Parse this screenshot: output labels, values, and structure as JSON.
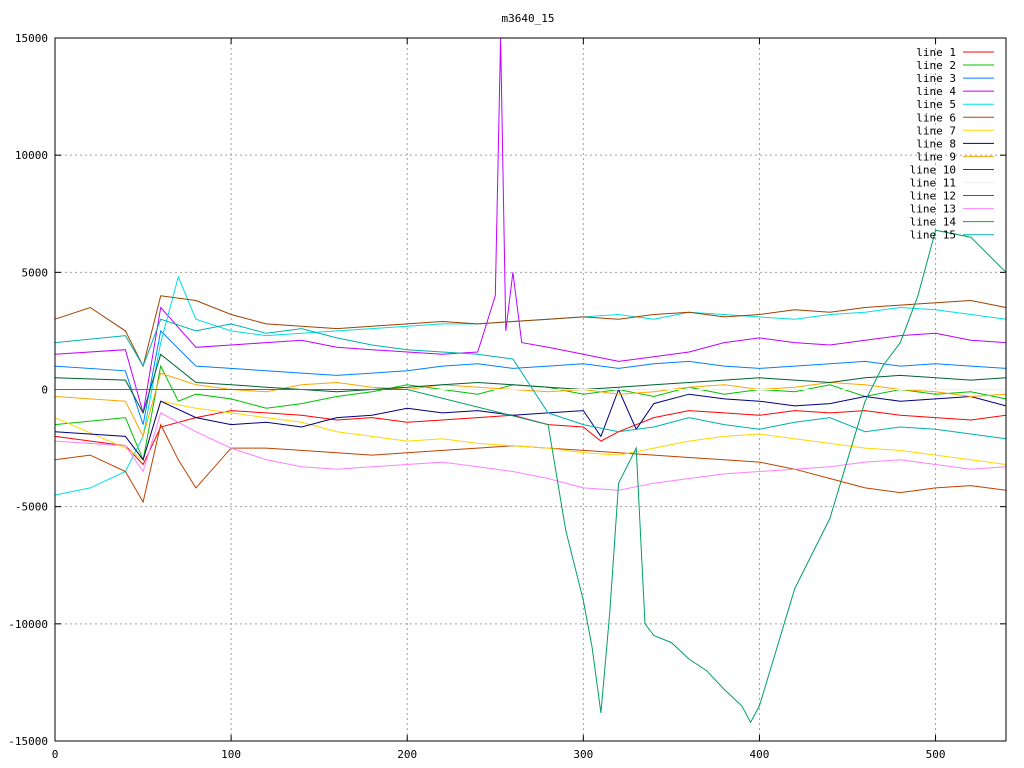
{
  "chart_data": {
    "type": "line",
    "title": "m3640_15",
    "xlabel": "",
    "ylabel": "",
    "xlim": [
      0,
      540
    ],
    "ylim": [
      -15000,
      15000
    ],
    "xticks": [
      "0",
      "100",
      "200",
      "300",
      "400",
      "500"
    ],
    "yticks": [
      "-15000",
      "-10000",
      "-5000",
      "0",
      "5000",
      "10000",
      "15000"
    ],
    "grid": true,
    "legend_position": "top-right",
    "series": [
      {
        "name": "line 1",
        "color": "#ff0000",
        "x": [
          0,
          40,
          50,
          60,
          80,
          100,
          120,
          140,
          160,
          180,
          200,
          220,
          240,
          260,
          280,
          300,
          310,
          320,
          340,
          360,
          380,
          400,
          420,
          440,
          460,
          480,
          500,
          520,
          540
        ],
        "y": [
          -2000,
          -2400,
          -3200,
          -1600,
          -1200,
          -900,
          -1000,
          -1100,
          -1300,
          -1200,
          -1400,
          -1300,
          -1200,
          -1100,
          -1500,
          -1600,
          -2200,
          -1800,
          -1200,
          -900,
          -1000,
          -1100,
          -900,
          -1000,
          -900,
          -1100,
          -1200,
          -1300,
          -1100
        ]
      },
      {
        "name": "line 2",
        "color": "#00c000",
        "x": [
          0,
          40,
          50,
          60,
          70,
          80,
          100,
          120,
          140,
          160,
          180,
          200,
          220,
          240,
          260,
          280,
          300,
          320,
          340,
          360,
          380,
          400,
          420,
          440,
          460,
          480,
          500,
          520,
          540
        ],
        "y": [
          -1500,
          -1200,
          -3000,
          1000,
          -500,
          -200,
          -400,
          -800,
          -600,
          -300,
          -100,
          200,
          0,
          -200,
          200,
          100,
          -200,
          0,
          -300,
          100,
          -200,
          0,
          -100,
          200,
          -300,
          0,
          -200,
          -100,
          -400
        ]
      },
      {
        "name": "line 3",
        "color": "#0080ff",
        "x": [
          0,
          40,
          50,
          60,
          80,
          100,
          120,
          140,
          160,
          180,
          200,
          220,
          240,
          260,
          280,
          300,
          320,
          340,
          360,
          380,
          400,
          420,
          440,
          460,
          480,
          500,
          520,
          540
        ],
        "y": [
          1000,
          800,
          -1500,
          2500,
          1000,
          900,
          800,
          700,
          600,
          700,
          800,
          1000,
          1100,
          900,
          1000,
          1100,
          900,
          1100,
          1200,
          1000,
          900,
          1000,
          1100,
          1200,
          1000,
          1100,
          1000,
          900
        ]
      },
      {
        "name": "line 4",
        "color": "#c000ff",
        "x": [
          0,
          40,
          50,
          60,
          80,
          100,
          120,
          140,
          160,
          180,
          200,
          220,
          240,
          250,
          253,
          256,
          260,
          265,
          280,
          300,
          320,
          340,
          360,
          380,
          400,
          420,
          440,
          460,
          480,
          500,
          520,
          540
        ],
        "y": [
          1500,
          1700,
          -1000,
          3500,
          1800,
          1900,
          2000,
          2100,
          1800,
          1700,
          1600,
          1500,
          1600,
          4000,
          15000,
          2500,
          5000,
          2000,
          1800,
          1500,
          1200,
          1400,
          1600,
          2000,
          2200,
          2000,
          1900,
          2100,
          2300,
          2400,
          2100,
          2000
        ]
      },
      {
        "name": "line 5",
        "color": "#00e0e0",
        "x": [
          0,
          20,
          40,
          50,
          60,
          70,
          80,
          100,
          120,
          140,
          160,
          180,
          200,
          220,
          240,
          260,
          280,
          300,
          320,
          340,
          360,
          380,
          400,
          420,
          440,
          460,
          480,
          500,
          520,
          540
        ],
        "y": [
          -4500,
          -4200,
          -3500,
          -2000,
          2000,
          4800,
          3000,
          2500,
          2300,
          2400,
          2500,
          2600,
          2700,
          2800,
          2800,
          2900,
          3000,
          3100,
          3200,
          3000,
          3300,
          3200,
          3100,
          3000,
          3200,
          3300,
          3500,
          3400,
          3200,
          3000
        ]
      },
      {
        "name": "line 6",
        "color": "#c04000",
        "x": [
          0,
          20,
          40,
          50,
          60,
          70,
          80,
          100,
          120,
          140,
          160,
          180,
          200,
          220,
          240,
          260,
          280,
          300,
          320,
          340,
          360,
          380,
          400,
          420,
          440,
          460,
          480,
          500,
          520,
          540
        ],
        "y": [
          -3000,
          -2800,
          -3500,
          -4800,
          -1500,
          -3000,
          -4200,
          -2500,
          -2500,
          -2600,
          -2700,
          -2800,
          -2700,
          -2600,
          -2500,
          -2400,
          -2500,
          -2600,
          -2700,
          -2800,
          -2900,
          -3000,
          -3100,
          -3400,
          -3800,
          -4200,
          -4400,
          -4200,
          -4100,
          -4300
        ]
      },
      {
        "name": "line 7",
        "color": "#ffd700",
        "x": [
          0,
          40,
          50,
          60,
          80,
          100,
          120,
          140,
          160,
          180,
          200,
          220,
          240,
          260,
          280,
          300,
          320,
          340,
          360,
          380,
          400,
          420,
          440,
          460,
          480,
          500,
          520,
          540
        ],
        "y": [
          -1200,
          -2500,
          -3000,
          -500,
          -800,
          -1000,
          -1200,
          -1400,
          -1800,
          -2000,
          -2200,
          -2100,
          -2300,
          -2400,
          -2500,
          -2700,
          -2800,
          -2500,
          -2200,
          -2000,
          -1900,
          -2100,
          -2300,
          -2500,
          -2600,
          -2800,
          -3000,
          -3200
        ]
      },
      {
        "name": "line 8",
        "color": "#000080",
        "x": [
          0,
          40,
          50,
          60,
          80,
          100,
          120,
          140,
          160,
          180,
          200,
          220,
          240,
          260,
          280,
          300,
          310,
          320,
          330,
          340,
          360,
          380,
          400,
          420,
          440,
          460,
          480,
          500,
          520,
          540
        ],
        "y": [
          -1800,
          -2000,
          -3000,
          -500,
          -1200,
          -1500,
          -1400,
          -1600,
          -1200,
          -1100,
          -800,
          -1000,
          -900,
          -1100,
          -1000,
          -900,
          -2000,
          0,
          -1700,
          -600,
          -200,
          -400,
          -500,
          -700,
          -600,
          -300,
          -500,
          -400,
          -300,
          -700
        ]
      },
      {
        "name": "line 9",
        "color": "#ffa500",
        "x": [
          0,
          40,
          50,
          60,
          80,
          100,
          120,
          140,
          160,
          180,
          200,
          220,
          240,
          260,
          280,
          300,
          320,
          340,
          360,
          380,
          400,
          420,
          440,
          460,
          480,
          500,
          520,
          540
        ],
        "y": [
          -300,
          -500,
          -2000,
          700,
          200,
          0,
          -100,
          200,
          300,
          100,
          0,
          200,
          100,
          0,
          -100,
          0,
          -200,
          -100,
          100,
          200,
          0,
          100,
          300,
          200,
          0,
          -100,
          -300,
          -200
        ]
      },
      {
        "name": "line 10",
        "color": "#006030",
        "x": [
          0,
          40,
          50,
          60,
          80,
          100,
          120,
          140,
          160,
          180,
          200,
          220,
          240,
          260,
          280,
          300,
          320,
          340,
          360,
          380,
          400,
          420,
          440,
          460,
          480,
          500,
          520,
          540
        ],
        "y": [
          500,
          400,
          -1000,
          1500,
          300,
          200,
          100,
          0,
          -100,
          0,
          100,
          200,
          300,
          200,
          100,
          0,
          100,
          200,
          300,
          400,
          500,
          400,
          300,
          500,
          600,
          500,
          400,
          500
        ]
      },
      {
        "name": "line 11",
        "color": "#f0f0f0",
        "x": [
          0,
          100,
          200,
          300,
          400,
          500,
          540
        ],
        "y": [
          0,
          0,
          0,
          0,
          0,
          0,
          0
        ]
      },
      {
        "name": "line 12",
        "color": "#a04000",
        "x": [
          0,
          20,
          40,
          50,
          60,
          80,
          100,
          120,
          140,
          160,
          180,
          200,
          220,
          240,
          260,
          280,
          300,
          320,
          340,
          360,
          380,
          400,
          420,
          440,
          460,
          480,
          500,
          520,
          540
        ],
        "y": [
          3000,
          3500,
          2500,
          1000,
          4000,
          3800,
          3200,
          2800,
          2700,
          2600,
          2700,
          2800,
          2900,
          2800,
          2900,
          3000,
          3100,
          3000,
          3200,
          3300,
          3100,
          3200,
          3400,
          3300,
          3500,
          3600,
          3700,
          3800,
          3500
        ]
      },
      {
        "name": "line 13",
        "color": "#ff80ff",
        "x": [
          0,
          40,
          50,
          60,
          80,
          100,
          120,
          140,
          160,
          180,
          200,
          220,
          240,
          260,
          280,
          300,
          320,
          340,
          360,
          380,
          400,
          420,
          440,
          460,
          480,
          500,
          520,
          540
        ],
        "y": [
          -2200,
          -2400,
          -3500,
          -1000,
          -1800,
          -2500,
          -3000,
          -3300,
          -3400,
          -3300,
          -3200,
          -3100,
          -3300,
          -3500,
          -3800,
          -4200,
          -4300,
          -4000,
          -3800,
          -3600,
          -3500,
          -3400,
          -3300,
          -3100,
          -3000,
          -3200,
          -3400,
          -3300
        ]
      },
      {
        "name": "line 14",
        "color": "#00a060",
        "x": [
          0,
          100,
          200,
          280,
          290,
          300,
          305,
          310,
          315,
          320,
          330,
          335,
          340,
          350,
          360,
          370,
          380,
          390,
          395,
          400,
          410,
          420,
          430,
          440,
          450,
          460,
          470,
          480,
          490,
          500,
          520,
          540
        ],
        "y": [
          0,
          0,
          0,
          -1500,
          -6000,
          -9000,
          -11000,
          -13800,
          -9500,
          -4000,
          -2500,
          -10000,
          -10500,
          -10800,
          -11500,
          -12000,
          -12800,
          -13500,
          -14200,
          -13500,
          -11000,
          -8500,
          -7000,
          -5500,
          -3000,
          -500,
          1000,
          2000,
          4000,
          6800,
          6500,
          5000
        ]
      },
      {
        "name": "line 15",
        "color": "#00b0b0",
        "x": [
          0,
          40,
          50,
          60,
          80,
          100,
          120,
          140,
          160,
          180,
          200,
          220,
          240,
          260,
          280,
          300,
          320,
          340,
          360,
          380,
          400,
          420,
          440,
          460,
          480,
          500,
          520,
          540
        ],
        "y": [
          2000,
          2300,
          1000,
          3000,
          2500,
          2800,
          2400,
          2600,
          2200,
          1900,
          1700,
          1600,
          1500,
          1300,
          -1000,
          -1500,
          -1800,
          -1600,
          -1200,
          -1500,
          -1700,
          -1400,
          -1200,
          -1800,
          -1600,
          -1700,
          -1900,
          -2100
        ]
      }
    ]
  }
}
